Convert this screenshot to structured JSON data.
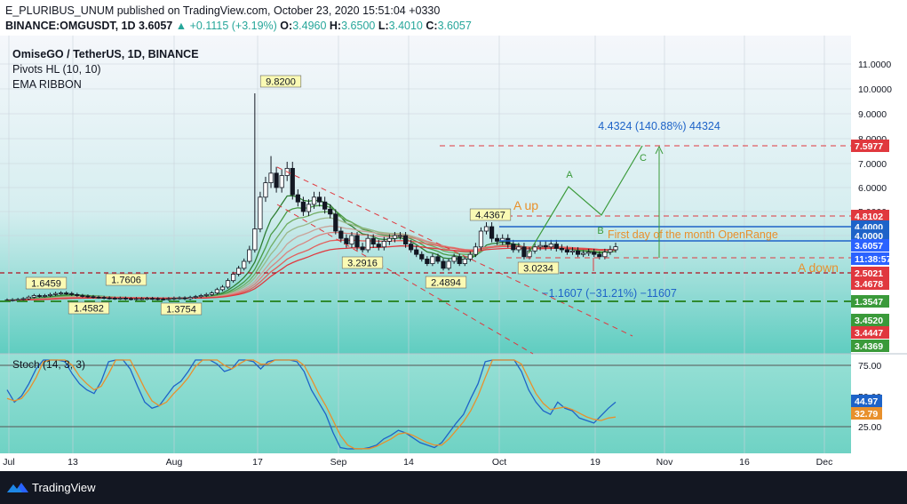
{
  "header": {
    "line1": "E_PLURIBUS_UNUM published on TradingView.com, October 23, 2020 15:51:04 +0330",
    "symbol": "BINANCE:OMGUSDT, 1D",
    "last": "3.6057",
    "change": "▲ +0.1115 (+3.19%)",
    "o_label": "O:",
    "o": "3.4960",
    "h_label": "H:",
    "h": "3.6500",
    "l_label": "L:",
    "l": "3.4010",
    "c_label": "C:",
    "c": "3.6057"
  },
  "legend": {
    "title": "OmiseGO / TetherUS, 1D, BINANCE",
    "ind1": "Pivots HL (10, 10)",
    "ind2": "EMA RIBBON"
  },
  "footer": {
    "brand": "TradingView"
  },
  "colors": {
    "up": "#26a69a",
    "bg": "#76d3c8",
    "candle": "#131722",
    "orange": "#e8902c",
    "blue": "#1e63c8",
    "green": "#3a9a3a",
    "red": "#e0383e"
  },
  "annotations": {
    "target": "4.4324 (140.88%) 44324",
    "drop": "−1.1607 (−31.21%) −11607",
    "a_up": "A up",
    "a_down": "A down",
    "openrange": "First day of the month OpenRange",
    "wave_a": "A",
    "wave_b": "B",
    "wave_c": "C"
  },
  "chart_data": [
    {
      "type": "candlestick",
      "title": "OmiseGO / TetherUS, 1D, BINANCE",
      "x_ticks": [
        "Jul",
        "13",
        "Aug",
        "17",
        "Sep",
        "14",
        "Oct",
        "19",
        "Nov",
        "16",
        "Dec"
      ],
      "y_ticks": [
        "11.0000",
        "10.0000",
        "9.0000",
        "8.0000",
        "7.0000",
        "6.0000",
        "5.0000",
        "4.4000",
        "4.0000"
      ],
      "close_series": [
        1.45,
        1.46,
        1.47,
        1.5,
        1.56,
        1.62,
        1.6,
        1.62,
        1.66,
        1.7,
        1.72,
        1.7,
        1.66,
        1.62,
        1.6,
        1.58,
        1.56,
        1.55,
        1.53,
        1.52,
        1.51,
        1.52,
        1.5,
        1.49,
        1.5,
        1.5,
        1.51,
        1.5,
        1.49,
        1.48,
        1.5,
        1.52,
        1.53,
        1.5,
        1.55,
        1.58,
        1.62,
        1.66,
        1.72,
        1.85,
        1.95,
        2.2,
        2.45,
        2.7,
        3.0,
        3.5,
        4.3,
        5.6,
        6.2,
        6.6,
        6.0,
        6.5,
        6.8,
        5.7,
        5.4,
        5.0,
        5.3,
        5.6,
        5.4,
        5.1,
        4.9,
        4.2,
        3.9,
        3.7,
        4.0,
        3.6,
        3.5,
        3.9,
        3.7,
        3.6,
        3.8,
        3.9,
        4.0,
        4.0,
        3.7,
        3.5,
        3.3,
        3.1,
        2.9,
        3.2,
        3.0,
        2.7,
        3.0,
        3.2,
        2.9,
        3.1,
        3.3,
        3.6,
        4.2,
        4.4,
        3.9,
        3.8,
        3.9,
        3.7,
        3.5,
        3.6,
        3.2,
        3.45,
        3.6,
        3.65,
        3.6,
        3.7,
        3.55,
        3.5,
        3.4,
        3.45,
        3.3,
        3.35,
        3.4,
        3.3,
        3.2,
        3.4,
        3.5,
        3.6057
      ],
      "pivot_labels": [
        "1.6459",
        "1.7606",
        "1.4582",
        "1.3754",
        "9.8200",
        "3.2916",
        "2.4894",
        "4.4367",
        "3.0234"
      ],
      "levels": [
        {
          "value": "7.5977",
          "color": "#e0383e"
        },
        {
          "value": "4.8102",
          "color": "#e0383e"
        },
        {
          "value": "4.4000",
          "color": "#1e63c8"
        },
        {
          "value": "4.0000",
          "color": "#1e63c8"
        },
        {
          "value": "3.6057",
          "color": "#2a62ff"
        },
        {
          "value": "11:38:57",
          "color": "#2a62ff"
        },
        {
          "value": "2.5021",
          "color": "#e0383e"
        },
        {
          "value": "3.4678",
          "color": "#e0383e"
        },
        {
          "value": "1.3547",
          "color": "#3a9a3a"
        },
        {
          "value": "3.4520",
          "color": "#3a9a3a"
        },
        {
          "value": "3.4447",
          "color": "#e0383e"
        },
        {
          "value": "3.4369",
          "color": "#3a9a3a"
        }
      ]
    },
    {
      "type": "line",
      "title": "Stoch (14, 3, 3)",
      "y_ticks": [
        "75.00",
        "50.00",
        "25.00"
      ],
      "ylim": [
        0,
        100
      ],
      "series": [
        {
          "color": "#1e63c8",
          "values": [
            55,
            45,
            50,
            60,
            72,
            85,
            90,
            88,
            78,
            68,
            60,
            55,
            52,
            62,
            78,
            88,
            84,
            72,
            58,
            45,
            40,
            42,
            50,
            58,
            62,
            70,
            80,
            88,
            85,
            76,
            70,
            72,
            80,
            86,
            78,
            72,
            78,
            88,
            90,
            84,
            78,
            70,
            55,
            45,
            35,
            20,
            8,
            5,
            7,
            6,
            8,
            10,
            15,
            18,
            22,
            20,
            16,
            12,
            10,
            8,
            12,
            20,
            28,
            35,
            48,
            60,
            78,
            88,
            90,
            86,
            80,
            70,
            55,
            45,
            38,
            35,
            45,
            40,
            38,
            32,
            30,
            28,
            34,
            40,
            44.97
          ]
        },
        {
          "color": "#e8902c",
          "values": [
            48,
            46,
            48,
            55,
            65,
            78,
            86,
            88,
            84,
            75,
            66,
            60,
            55,
            58,
            68,
            80,
            85,
            80,
            68,
            56,
            46,
            42,
            45,
            52,
            58,
            65,
            74,
            83,
            86,
            82,
            75,
            72,
            76,
            82,
            82,
            76,
            76,
            84,
            88,
            87,
            82,
            75,
            64,
            52,
            42,
            30,
            18,
            10,
            7,
            7,
            7,
            9,
            12,
            15,
            19,
            20,
            18,
            15,
            12,
            10,
            10,
            15,
            22,
            29,
            38,
            50,
            65,
            80,
            88,
            88,
            84,
            76,
            64,
            52,
            44,
            39,
            40,
            41,
            39,
            36,
            33,
            31,
            30,
            32,
            32.79
          ]
        }
      ]
    }
  ]
}
